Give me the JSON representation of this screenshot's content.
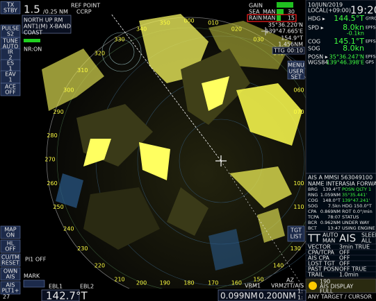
{
  "top_left": {
    "range": "1.5",
    "range_unit": "/0.25 NM",
    "ref_point": "REF POINT",
    "ccrp": "CCRP",
    "mode": "NORTH UP RM",
    "antenna": "ANT1(M) X-BAND",
    "coast": "COAST",
    "nr": "NR:ON"
  },
  "left_buttons": [
    [
      "TX",
      "STBY"
    ],
    [
      "PULSE",
      "S2"
    ],
    [
      "TUNE",
      "AUTO"
    ],
    [
      "IR",
      "2"
    ],
    [
      "ES",
      "1"
    ],
    [
      "EAV",
      "1"
    ],
    [
      "ACE",
      "OFF"
    ],
    [
      "MAP",
      "ON"
    ],
    [
      "HL",
      "OFF"
    ],
    [
      "CU/TM",
      "RESET"
    ],
    [
      "OWN",
      "AIS"
    ],
    [
      "AIS",
      "PLT1+"
    ]
  ],
  "left_extra": {
    "pi": "PI1 OFF",
    "mark": "MARK",
    "plt_count": "27"
  },
  "gain": {
    "gain": "GAIN",
    "sea": "SEA",
    "sea_mode": "MAN",
    "sea_value": "30",
    "rain": "RAIN",
    "rain_mode": "MAN",
    "rain_value": "15"
  },
  "cursor": {
    "lat": "35°36.220'N",
    "lon": "139°47.665'E",
    "brg": "154.9°T",
    "rng": "1.456NM",
    "ttg_label": "TTG",
    "ttg": "00:10"
  },
  "own_ship": {
    "date": "10/JUN/2019",
    "local": "LOCAL(+09:00)",
    "time": "19:20",
    "rows": [
      [
        "HDG ▸",
        "144.5°T",
        "GYRO"
      ],
      [
        "SPD ▸",
        "8.0kn",
        "EPFS"
      ],
      [
        "",
        "-0.1kn",
        ""
      ],
      [
        "COG",
        "145.1°T",
        "EPFS"
      ],
      [
        "SOG",
        "8.0kn",
        ""
      ],
      [
        "POSN ▸",
        "35°36.247'N",
        "EPFS"
      ],
      [
        "WGS84",
        "139°46.398'E",
        "GPS"
      ]
    ]
  },
  "menu": {
    "menu": "MENU",
    "user": "USER",
    "set": "SET"
  },
  "ais_target": {
    "header": "AIS A   MMSI 563049100",
    "name": "NAME INTERASIA FORWARD",
    "rows": [
      [
        "BRG",
        "139.4°T",
        "POSN QLTY 1"
      ],
      [
        "RNG",
        "1.059NM",
        "35°35.441'"
      ],
      [
        "COG",
        "148.0°T",
        "139°47.241'"
      ],
      [
        "SOG",
        "7.5kn",
        "HDG 150.0°T"
      ],
      [
        "CPA",
        "0.869NM",
        "ROT 0.0°/min"
      ],
      [
        "TCPA",
        "78:07",
        "STATUS"
      ],
      [
        "BCR",
        "0.962NM",
        "UNDER WAY"
      ],
      [
        "BCT",
        "13:47",
        "USING ENGINE"
      ]
    ]
  },
  "tt_ais": {
    "tt": "TT",
    "auto": "AUTO",
    "man": "MAN",
    "ais": "AIS",
    "sleep": "SLEEP",
    "all": "ALL",
    "tgt": "TGT",
    "list": "LIST"
  },
  "settings": [
    [
      "VECTOR",
      "3min TRUE"
    ],
    [
      "CPA/TCPA",
      "OFF"
    ],
    [
      "AIS CPA",
      "OFF"
    ],
    [
      "LOST TGT",
      "OFF"
    ],
    [
      "PAST POSN",
      "OFF TRUE"
    ],
    [
      "TRAIL",
      "1.0min"
    ]
  ],
  "alert": {
    "code": "190",
    "text": "AIS DISPLAY",
    "sub": "FULL"
  },
  "footer_right": "ANY TARGET / CURSOR",
  "bottom": {
    "ebl1": "EBL1",
    "ebl2": "EBL2",
    "ebl1_value": "142.7°T",
    "vrm1": "VRM1",
    "vrm2": "VRM2",
    "vrm1_value": "0.099NM",
    "vrm2_value": "0.200NM",
    "az": "AZ",
    "tt_ais": "TT/AIS",
    "one_a": "1:",
    "one_b": "1:"
  },
  "bearing_labels": [
    "000",
    "010",
    "020",
    "030",
    "040",
    "050",
    "060",
    "070",
    "100",
    "110",
    "120",
    "130",
    "140",
    "150",
    "160",
    "170",
    "180",
    "190",
    "200",
    "210",
    "220",
    "230",
    "240",
    "250",
    "260",
    "270",
    "280",
    "290",
    "300",
    "310",
    "320",
    "330",
    "340",
    "350"
  ]
}
